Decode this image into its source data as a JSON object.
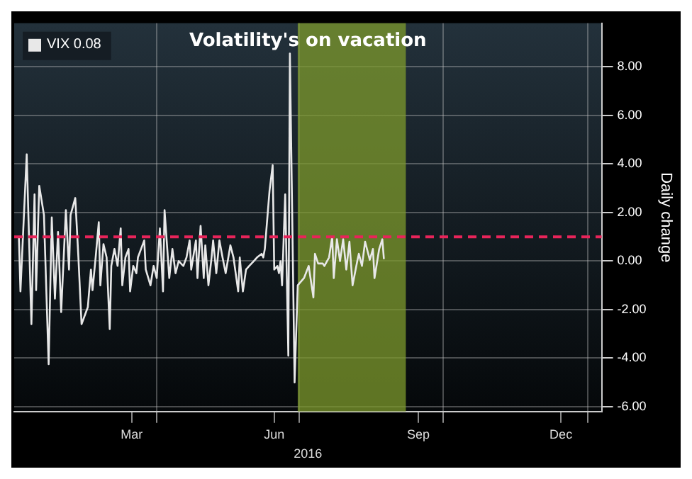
{
  "chart_data": {
    "type": "line",
    "title": "Volatility's on vacation",
    "xlabel": "2016",
    "ylabel": "Daily change",
    "x": [
      "2016-01-04",
      "2016-01-05",
      "2016-01-09",
      "2016-01-12",
      "2016-01-14",
      "2016-01-15",
      "2016-01-17",
      "2016-01-20",
      "2016-01-23",
      "2016-01-25",
      "2016-01-27",
      "2016-01-29",
      "2016-01-31",
      "2016-02-03",
      "2016-02-05",
      "2016-02-06",
      "2016-02-09",
      "2016-02-11",
      "2016-02-13",
      "2016-02-17",
      "2016-02-19",
      "2016-02-20",
      "2016-02-22",
      "2016-02-24",
      "2016-02-25",
      "2016-02-27",
      "2016-02-29",
      "2016-03-02",
      "2016-03-03",
      "2016-03-05",
      "2016-03-07",
      "2016-03-09",
      "2016-03-10",
      "2016-03-12",
      "2016-03-14",
      "2016-03-15",
      "2016-03-17",
      "2016-03-19",
      "2016-03-20",
      "2016-03-24",
      "2016-03-25",
      "2016-03-28",
      "2016-03-30",
      "2016-04-01",
      "2016-04-03",
      "2016-04-05",
      "2016-04-06",
      "2016-04-09",
      "2016-04-11",
      "2016-04-13",
      "2016-04-15",
      "2016-04-18",
      "2016-04-20",
      "2016-04-22",
      "2016-04-23",
      "2016-04-26",
      "2016-04-27",
      "2016-04-29",
      "2016-05-01",
      "2016-05-02",
      "2016-05-04",
      "2016-05-06",
      "2016-05-07",
      "2016-05-09",
      "2016-05-11",
      "2016-05-13",
      "2016-05-15",
      "2016-05-18",
      "2016-05-20",
      "2016-05-23",
      "2016-05-24",
      "2016-05-26",
      "2016-05-28",
      "2016-05-30",
      "2016-06-02",
      "2016-06-04",
      "2016-06-07",
      "2016-06-08",
      "2016-06-09",
      "2016-06-12",
      "2016-06-14",
      "2016-06-15",
      "2016-06-17",
      "2016-06-18",
      "2016-06-19",
      "2016-06-20",
      "2016-06-22",
      "2016-06-24",
      "2016-06-25",
      "2016-06-28",
      "2016-06-30",
      "2016-07-04",
      "2016-07-07",
      "2016-07-10",
      "2016-07-11",
      "2016-07-13",
      "2016-07-16",
      "2016-07-17",
      "2016-07-20",
      "2016-07-22",
      "2016-07-23",
      "2016-07-25",
      "2016-07-27",
      "2016-07-29",
      "2016-07-31",
      "2016-08-02",
      "2016-08-04",
      "2016-08-07",
      "2016-08-08",
      "2016-08-10",
      "2016-08-12",
      "2016-08-15",
      "2016-08-17",
      "2016-08-18",
      "2016-08-21",
      "2016-08-23",
      "2016-08-24"
    ],
    "series": [
      {
        "name": "VIX 0.08",
        "color": "#e8e8e8",
        "values": [
          1.0,
          -1.25,
          4.4,
          -2.6,
          2.75,
          -1.2,
          3.1,
          1.9,
          -4.25,
          1.8,
          -1.55,
          1.2,
          -2.1,
          2.1,
          -0.35,
          1.9,
          2.6,
          0.15,
          -2.6,
          -1.9,
          -0.35,
          -1.2,
          0.15,
          1.6,
          -1.0,
          0.7,
          0.15,
          -2.8,
          -0.2,
          0.5,
          -0.2,
          1.35,
          -1.0,
          0.15,
          0.5,
          -1.25,
          -0.2,
          -0.5,
          0.15,
          0.85,
          -0.35,
          -1.0,
          -0.2,
          -0.7,
          1.35,
          -1.25,
          2.1,
          -0.7,
          0.5,
          -0.5,
          0,
          -0.2,
          0.15,
          0.85,
          -0.35,
          0.85,
          -0.7,
          1.45,
          -0.7,
          0.65,
          -1.0,
          0.15,
          0.85,
          -0.5,
          0.85,
          0.15,
          -0.5,
          0.65,
          0.15,
          -1.25,
          0.15,
          -1.25,
          -0.35,
          -0.2,
          0,
          0.15,
          0.3,
          0.15,
          0.5,
          2.9,
          3.95,
          -0.35,
          -0.2,
          -0.5,
          0,
          -1.0,
          2.75,
          -3.9,
          8.55,
          -5.0,
          -1.0,
          -0.7,
          -0.2,
          -1.5,
          0.3,
          -0.1,
          -0.1,
          -0.2,
          0.15,
          1.0,
          -0.7,
          0.9,
          0,
          0.9,
          -0.35,
          0.8,
          -1.0,
          0,
          0.3,
          -0.2,
          0.8,
          0.05,
          0.5,
          -0.7,
          0.5,
          0.9,
          0.08
        ]
      }
    ],
    "xlim": [
      "2016-01-01",
      "2017-01-10"
    ],
    "xticks": [
      {
        "value": "2016-03-16",
        "label": "Mar"
      },
      {
        "value": "2016-04-01",
        "label": null
      },
      {
        "value": "2016-06-15",
        "label": "Jun"
      },
      {
        "value": "2016-07-01",
        "label": null
      },
      {
        "value": "2016-09-15",
        "label": "Sep"
      },
      {
        "value": "2016-10-01",
        "label": null
      },
      {
        "value": "2016-12-15",
        "label": "Dec"
      },
      {
        "value": "2017-01-01",
        "label": null
      }
    ],
    "ylim": [
      -6.2,
      9.8
    ],
    "yticks": [
      {
        "value": -6,
        "label": "-6.00"
      },
      {
        "value": -4,
        "label": "-4.00"
      },
      {
        "value": -2,
        "label": "-2.00"
      },
      {
        "value": 0,
        "label": "0.00"
      },
      {
        "value": 2,
        "label": "2.00"
      },
      {
        "value": 4,
        "label": "4.00"
      },
      {
        "value": 6,
        "label": "6.00"
      },
      {
        "value": 8,
        "label": "8.00"
      }
    ],
    "ref_lines": [
      {
        "axis": "y",
        "value": 1,
        "color": "#e8245a",
        "line_style": "dashed"
      }
    ],
    "bands": [
      {
        "axis": "x",
        "from": "2016-06-30",
        "to": "2016-09-07",
        "color": "#7d9a2c"
      }
    ],
    "grid": true,
    "legend": "top left",
    "marker": "none",
    "line_style": "solid"
  }
}
